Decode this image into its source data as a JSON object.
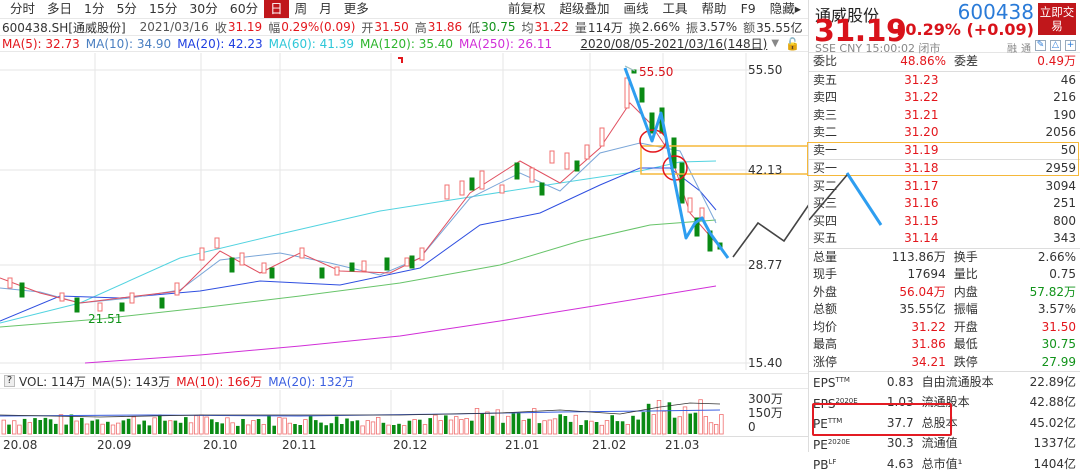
{
  "toolbar": {
    "periods": [
      "分时",
      "多日",
      "1分",
      "5分",
      "15分",
      "30分",
      "60分",
      "日",
      "周",
      "月",
      "更多"
    ],
    "active_period": "日",
    "menu": [
      "前复权",
      "超级叠加",
      "画线",
      "工具",
      "帮助",
      "F9",
      "隐藏▸"
    ]
  },
  "infobar": {
    "symbol": "600438.SH[通威股份]",
    "date": "2021/03/16",
    "close_label": "收",
    "close": "31.19",
    "pct_label": "幅",
    "pct": "0.29%(0.09)",
    "open_label": "开",
    "open": "31.50",
    "high_label": "高",
    "high": "31.86",
    "low_label": "低",
    "low": "30.75",
    "avg_label": "均",
    "avg": "31.22",
    "vol_label": "量",
    "vol": "114万",
    "turnover_label": "换",
    "turnover": "2.66%",
    "amp_label": "振",
    "amp": "3.57%",
    "amount_label": "额",
    "amount": "35.55亿"
  },
  "ma_bar": {
    "items": [
      {
        "label": "MA(5): 32.73",
        "color": "#e3161c"
      },
      {
        "label": "MA(10): 34.90",
        "color": "#4a7fc1"
      },
      {
        "label": "MA(20): 42.23",
        "color": "#1f3fe0"
      },
      {
        "label": "MA(60): 41.39",
        "color": "#2ec7d8"
      },
      {
        "label": "MA(120): 35.40",
        "color": "#2db52d"
      },
      {
        "label": "MA(250): 26.11",
        "color": "#d12fd8"
      }
    ],
    "range": "2020/08/05-2021/03/16(148日)"
  },
  "chart": {
    "y_labels": [
      "55.50",
      "42.13",
      "28.77",
      "15.40"
    ],
    "high_annotation": "55.50",
    "low_annotation": "21.51",
    "x_labels": [
      "20.08",
      "20.09",
      "20.10",
      "20.11",
      "20.12",
      "21.01",
      "21.02",
      "21.03"
    ]
  },
  "chart_data": {
    "type": "candlestick",
    "title": "600438.SH 通威股份 日K",
    "x_range": "2020/08/05-2021/03/16",
    "ylim": [
      15.4,
      55.5
    ],
    "y_ticks": [
      55.5,
      42.13,
      28.77,
      15.4
    ],
    "x_ticks": [
      "20.08",
      "20.09",
      "20.10",
      "20.11",
      "20.12",
      "21.01",
      "21.02",
      "21.03"
    ],
    "annotations": [
      {
        "label": "55.50",
        "type": "high"
      },
      {
        "label": "21.51",
        "type": "low"
      },
      {
        "label": "42.13",
        "type": "highlight band"
      }
    ],
    "series": [
      {
        "name": "MA(5)",
        "last": 32.73
      },
      {
        "name": "MA(10)",
        "last": 34.9
      },
      {
        "name": "MA(20)",
        "last": 42.23
      },
      {
        "name": "MA(60)",
        "last": 41.39
      },
      {
        "name": "MA(120)",
        "last": 35.4
      },
      {
        "name": "MA(250)",
        "last": 26.11
      }
    ],
    "volume": {
      "VOL": "114万",
      "MA(5)": "143万",
      "MA(10)": "166万",
      "MA(20)": "132万",
      "y_ticks": [
        "300万",
        "150万",
        "0"
      ]
    }
  },
  "volume_bar": {
    "help": "?",
    "items": [
      {
        "label": "VOL: 114万",
        "color": "#333"
      },
      {
        "label": "MA(5): 143万",
        "color": "#333"
      },
      {
        "label": "MA(10): 166万",
        "color": "#e3161c"
      },
      {
        "label": "MA(20): 132万",
        "color": "#3b5fe0"
      }
    ],
    "y_labels": [
      "300万",
      "150万",
      "0"
    ]
  },
  "quote": {
    "name": "通威股份",
    "code": "600438",
    "trade_button": "立即交易",
    "price": "31.19",
    "change": "+0.29% (+0.09)",
    "meta": "SSE  CNY  15:00:02  闭市",
    "tags": [
      "融",
      "通"
    ]
  },
  "orderbook": {
    "ratio_label": "委比",
    "ratio": "48.86%",
    "diff_label": "委差",
    "diff": "0.49万",
    "asks": [
      {
        "label": "卖五",
        "price": "31.23",
        "vol": "46"
      },
      {
        "label": "卖四",
        "price": "31.22",
        "vol": "216"
      },
      {
        "label": "卖三",
        "price": "31.21",
        "vol": "190"
      },
      {
        "label": "卖二",
        "price": "31.20",
        "vol": "2056"
      },
      {
        "label": "卖一",
        "price": "31.19",
        "vol": "50"
      }
    ],
    "bids": [
      {
        "label": "买一",
        "price": "31.18",
        "vol": "2959"
      },
      {
        "label": "买二",
        "price": "31.17",
        "vol": "3094"
      },
      {
        "label": "买三",
        "price": "31.16",
        "vol": "251"
      },
      {
        "label": "买四",
        "price": "31.15",
        "vol": "800"
      },
      {
        "label": "买五",
        "price": "31.14",
        "vol": "343"
      }
    ]
  },
  "stats": [
    {
      "k1": "总量",
      "v1": "113.86万",
      "c1": "",
      "k2": "换手",
      "v2": "2.66%",
      "c2": ""
    },
    {
      "k1": "现手",
      "v1": "17694",
      "c1": "",
      "k2": "量比",
      "v2": "0.75",
      "c2": ""
    },
    {
      "k1": "外盘",
      "v1": "56.04万",
      "c1": "red",
      "k2": "内盘",
      "v2": "57.82万",
      "c2": "green"
    },
    {
      "k1": "总额",
      "v1": "35.55亿",
      "c1": "",
      "k2": "振幅",
      "v2": "3.57%",
      "c2": ""
    },
    {
      "k1": "均价",
      "v1": "31.22",
      "c1": "red",
      "k2": "开盘",
      "v2": "31.50",
      "c2": "red"
    },
    {
      "k1": "最高",
      "v1": "31.86",
      "c1": "red",
      "k2": "最低",
      "v2": "30.75",
      "c2": "green"
    },
    {
      "k1": "涨停",
      "v1": "34.21",
      "c1": "red",
      "k2": "跌停",
      "v2": "27.99",
      "c2": "green"
    }
  ],
  "fundamentals": [
    {
      "k1": "EPS",
      "s1": "TTM",
      "v1": "0.83",
      "k2": "自由流通股本",
      "v2": "22.89亿"
    },
    {
      "k1": "EPS",
      "s1": "2020E",
      "v1": "1.03",
      "k2": "流通股本",
      "v2": "42.88亿"
    },
    {
      "k1": "PE",
      "s1": "TTM",
      "v1": "37.7",
      "k2": "总股本",
      "v2": "45.02亿"
    },
    {
      "k1": "PE",
      "s1": "2020E",
      "v1": "30.3",
      "k2": "流通值",
      "v2": "1337亿"
    },
    {
      "k1": "PB",
      "s1": "LF",
      "v1": "4.63",
      "k2": "总市值¹",
      "v2": "1404亿"
    }
  ]
}
